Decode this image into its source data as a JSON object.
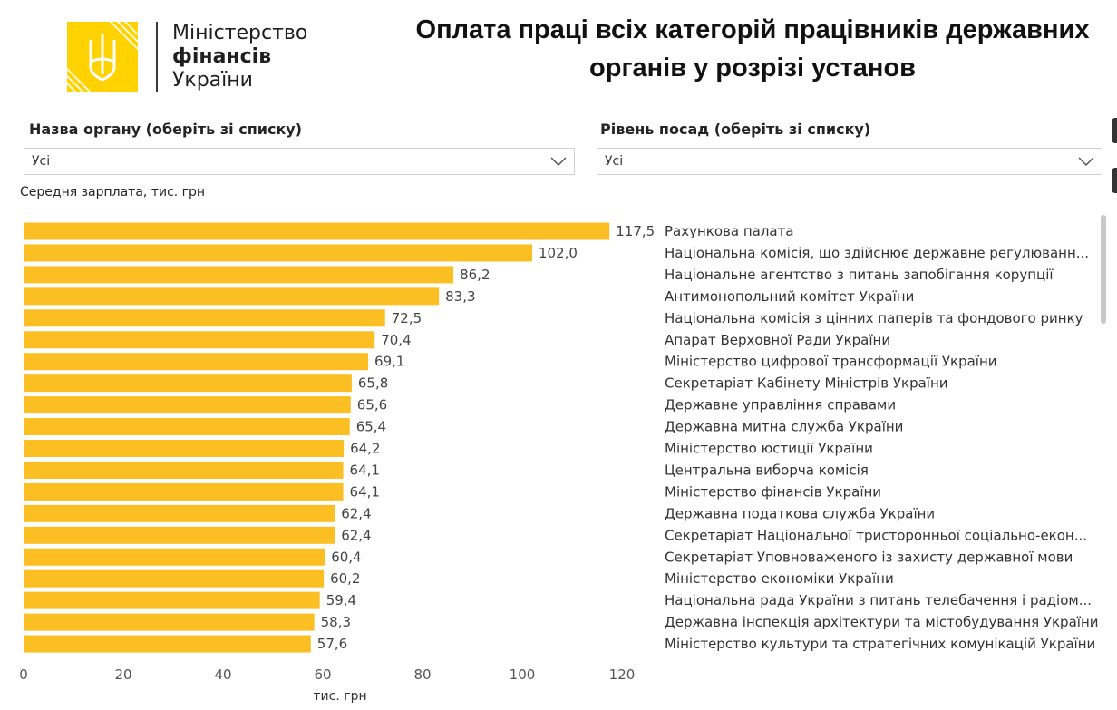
{
  "logo": {
    "line1": "Міністерство",
    "line2": "фінансів",
    "line3": "України",
    "color": "#ffd200"
  },
  "title": "Оплата праці всіх категорій працівників державних органів у розрізі установ",
  "filters": {
    "org_label": "Назва органу (оберіть зі списку)",
    "org_value": "Усі",
    "level_label": "Рівень посад (оберіть зі списку)",
    "level_value": "Усі"
  },
  "chart_data": {
    "type": "bar",
    "orientation": "horizontal",
    "title": "Середня зарплата, тис. грн",
    "xlabel": "тис. грн",
    "ylabel": "",
    "xlim": [
      0,
      120
    ],
    "xticks": [
      0,
      20,
      40,
      60,
      80,
      100,
      120
    ],
    "bar_color": "#fbbf24",
    "categories": [
      "Рахункова палата",
      "Національна комісія, що здійснює державне регулюванн...",
      "Національне агентство з питань запобігання корупції",
      "Антимонопольний комітет України",
      "Національна комісія з цінних паперів та фондового ринку",
      "Апарат Верховної Ради України",
      "Міністерство цифрової трансформації України",
      "Секретаріат Кабінету Міністрів України",
      "Державне управління справами",
      "Державна митна служба України",
      "Міністерство юстиції України",
      "Центральна виборча комісія",
      "Міністерство фінансів України",
      "Державна податкова служба України",
      "Секретаріат Національної тристоронньої соціально-екон...",
      "Секретаріат Уповноваженого із захисту державної мови",
      "Міністерство економіки України",
      "Національна рада України з питань телебачення і радіом...",
      "Державна інспекція архітектури та містобудування України",
      "Міністерство культури та стратегічних комунікацій України"
    ],
    "values": [
      117.5,
      102.0,
      86.2,
      83.3,
      72.5,
      70.4,
      69.1,
      65.8,
      65.6,
      65.4,
      64.2,
      64.1,
      64.1,
      62.4,
      62.4,
      60.4,
      60.2,
      59.4,
      58.3,
      57.6
    ],
    "value_labels": [
      "117,5",
      "102,0",
      "86,2",
      "83,3",
      "72,5",
      "70,4",
      "69,1",
      "65,8",
      "65,6",
      "65,4",
      "64,2",
      "64,1",
      "64,1",
      "62,4",
      "62,4",
      "60,4",
      "60,2",
      "59,4",
      "58,3",
      "57,6"
    ]
  }
}
